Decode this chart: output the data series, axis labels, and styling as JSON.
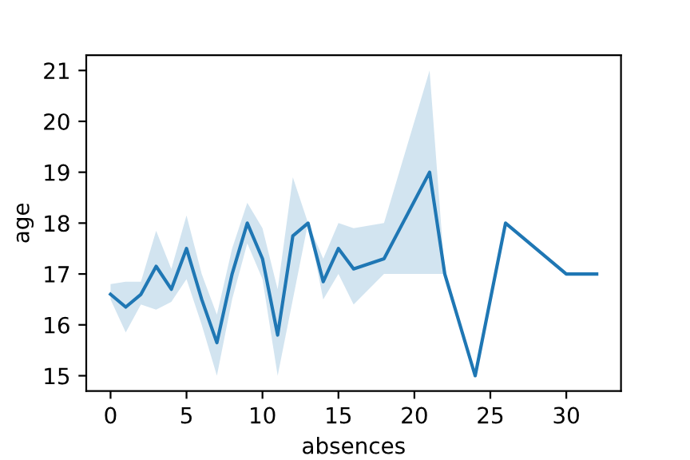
{
  "chart_data": {
    "type": "line",
    "xlabel": "absences",
    "ylabel": "age",
    "x": [
      0,
      1,
      2,
      3,
      4,
      5,
      6,
      7,
      8,
      9,
      10,
      11,
      12,
      13,
      14,
      15,
      16,
      18,
      21,
      22,
      24,
      26,
      30,
      32
    ],
    "series": [
      {
        "color": "#1f77b4",
        "values": [
          16.6,
          16.35,
          16.6,
          17.15,
          16.7,
          17.5,
          16.5,
          15.65,
          17.0,
          18.0,
          17.3,
          15.8,
          17.75,
          18.0,
          16.85,
          17.5,
          17.1,
          17.3,
          19.0,
          17.0,
          15.0,
          18.0,
          17.0,
          17.0
        ],
        "lower": [
          16.5,
          15.85,
          16.4,
          16.3,
          16.45,
          16.9,
          16.0,
          15.0,
          16.5,
          17.6,
          16.9,
          15.0,
          16.5,
          18.0,
          16.5,
          17.0,
          16.4,
          17.0,
          17.0,
          17.0,
          15.0,
          18.0,
          17.0,
          17.0
        ],
        "upper": [
          16.8,
          16.85,
          16.85,
          17.85,
          17.1,
          18.15,
          17.0,
          16.2,
          17.5,
          18.4,
          17.9,
          16.7,
          18.9,
          18.0,
          17.3,
          18.0,
          17.9,
          18.0,
          21.0,
          17.0,
          15.0,
          18.0,
          17.0,
          17.0
        ]
      }
    ],
    "xlim": [
      -1.6,
      33.6
    ],
    "ylim": [
      14.7,
      21.3
    ],
    "xticks": [
      0,
      5,
      10,
      15,
      20,
      25,
      30
    ],
    "yticks": [
      15,
      16,
      17,
      18,
      19,
      20,
      21
    ],
    "grid": false,
    "legend": false
  }
}
